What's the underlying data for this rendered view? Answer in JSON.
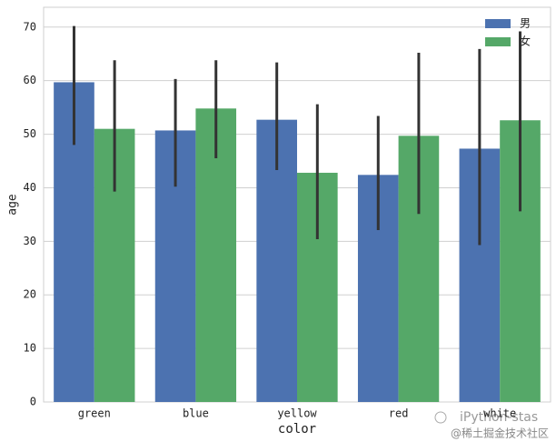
{
  "chart_data": {
    "type": "bar",
    "categories": [
      "green",
      "blue",
      "yellow",
      "red",
      "white"
    ],
    "x_label": "color",
    "y_label": "age",
    "series": [
      {
        "name": "男",
        "color": "#4c72b0",
        "values": [
          59.7,
          50.7,
          52.7,
          42.4,
          47.3
        ],
        "ci_low": [
          48.0,
          40.2,
          43.3,
          32.1,
          29.3
        ],
        "ci_high": [
          70.2,
          60.3,
          63.4,
          53.4,
          65.9
        ]
      },
      {
        "name": "女",
        "color": "#55a868",
        "values": [
          51.0,
          54.8,
          42.8,
          49.7,
          52.6
        ],
        "ci_low": [
          39.3,
          45.5,
          30.4,
          35.1,
          35.6
        ],
        "ci_high": [
          63.8,
          63.8,
          55.6,
          65.2,
          69.2
        ]
      }
    ],
    "error_color": "#333333",
    "ylim": [
      0,
      73.7
    ],
    "yticks": [
      0,
      10,
      20,
      30,
      40,
      50,
      60,
      70
    ],
    "grid": true,
    "legend": "upper right"
  },
  "watermark": {
    "line1": "iPython-stas",
    "line2": "@稀土掘金技术社区"
  }
}
